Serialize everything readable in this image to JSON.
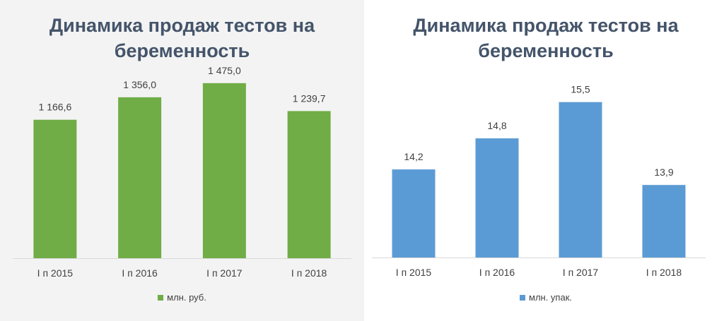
{
  "chart_data": [
    {
      "type": "bar",
      "title_lines": [
        "Динамика продаж тестов на",
        "беременность"
      ],
      "categories": [
        "I п 2015",
        "I п 2016",
        "I п 2017",
        "I п 2018"
      ],
      "series": [
        {
          "name": "млн. руб.",
          "values": [
            1166.6,
            1356.0,
            1475.0,
            1239.7
          ],
          "color": "#70ad47"
        }
      ],
      "data_labels": [
        "1 166,6",
        "1 356,0",
        "1 475,0",
        "1 239,7"
      ],
      "ylim": [
        0,
        1700
      ],
      "grid": false,
      "legend_position": "bottom"
    },
    {
      "type": "bar",
      "title_lines": [
        "Динамика продаж тестов на",
        "беременность"
      ],
      "categories": [
        "I п 2015",
        "I п 2016",
        "I п 2017",
        "I п 2018"
      ],
      "series": [
        {
          "name": "млн. упак.",
          "values": [
            14.2,
            14.8,
            15.5,
            13.9
          ],
          "color": "#5b9bd5"
        }
      ],
      "data_labels": [
        "14,2",
        "14,8",
        "15,5",
        "13,9"
      ],
      "ylim": [
        12.5,
        15.7
      ],
      "grid": false,
      "legend_position": "bottom"
    }
  ]
}
